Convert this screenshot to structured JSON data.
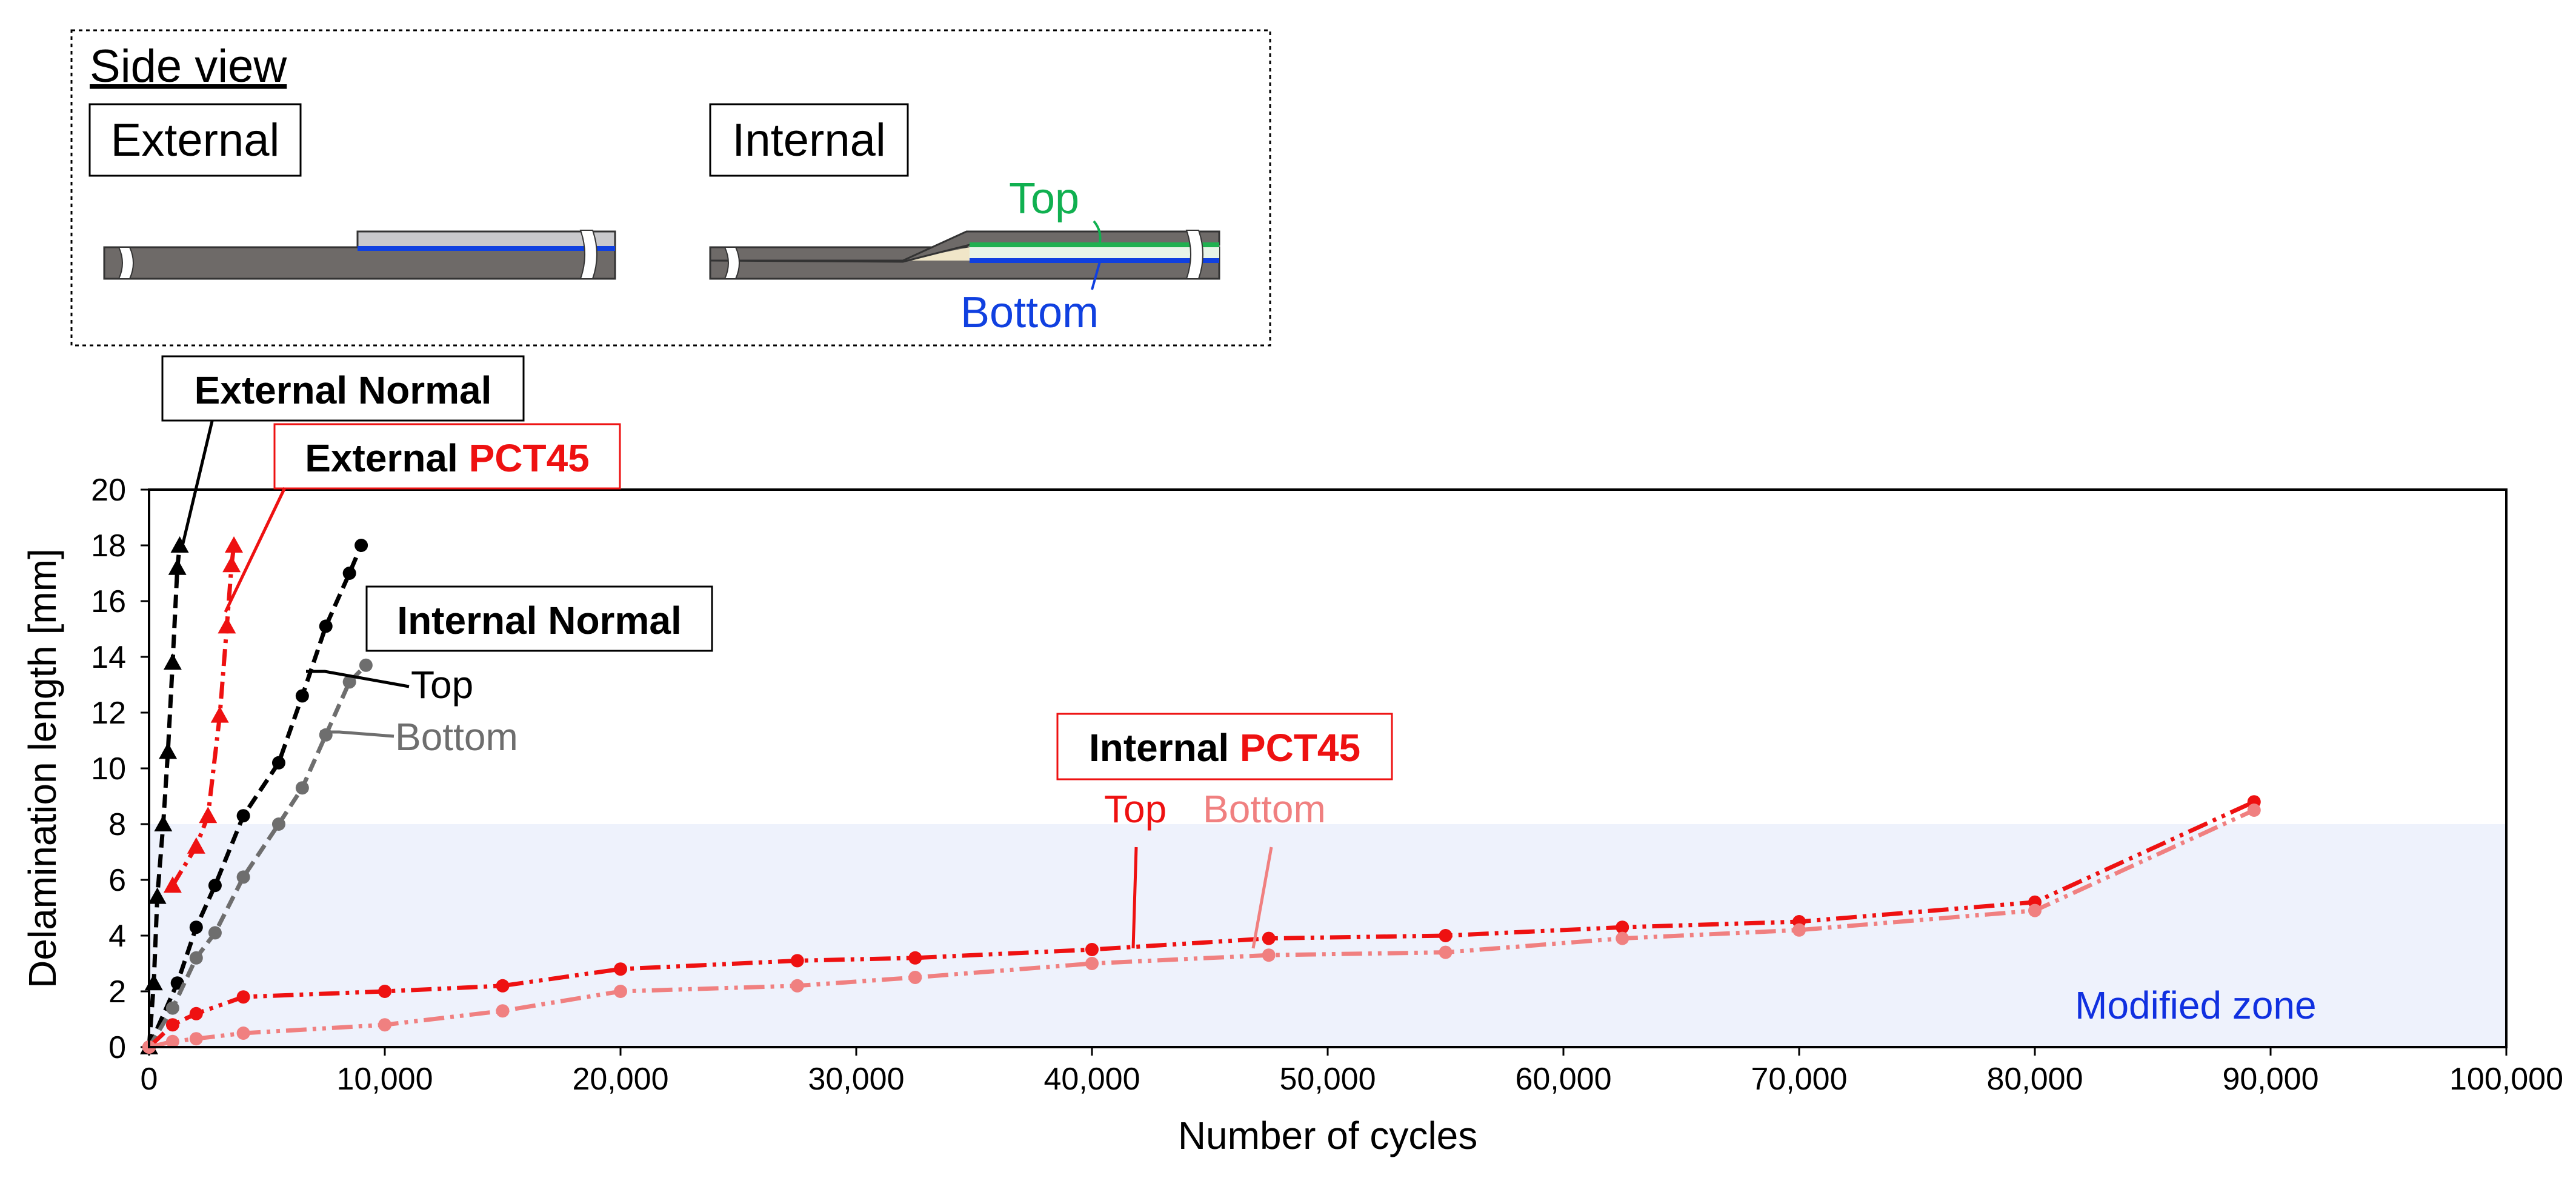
{
  "chart_data": {
    "type": "line",
    "xlabel": "Number of cycles",
    "ylabel": "Delamination length [mm]",
    "xlim": [
      0,
      100000
    ],
    "ylim": [
      0,
      20
    ],
    "x_ticks": [
      "0",
      "10,000",
      "20,000",
      "30,000",
      "40,000",
      "50,000",
      "60,000",
      "70,000",
      "80,000",
      "90,000",
      "100,000"
    ],
    "y_ticks": [
      "0",
      "2",
      "4",
      "6",
      "8",
      "10",
      "12",
      "14",
      "16",
      "18",
      "20"
    ],
    "shaded_region": {
      "label": "Modified zone",
      "y_range": [
        0,
        8
      ],
      "x_range": [
        0,
        100000
      ],
      "color": "#eef2fc",
      "label_color": "#1030e0"
    },
    "series": [
      {
        "name": "External Normal",
        "marker": "triangle",
        "color": "#000000",
        "dash": "dashed",
        "x": [
          0,
          200,
          350,
          600,
          800,
          1000,
          1200,
          1300
        ],
        "y": [
          0,
          2.3,
          5.4,
          8.0,
          10.6,
          13.8,
          17.2,
          18.0
        ]
      },
      {
        "name": "External PCT45",
        "marker": "triangle",
        "color": "#ee1111",
        "dash": "dashdot",
        "x": [
          1000,
          2000,
          2500,
          3000,
          3300,
          3500,
          3600
        ],
        "y": [
          5.8,
          7.2,
          8.3,
          11.9,
          15.1,
          17.3,
          18.0
        ]
      },
      {
        "name": "Internal Normal Top",
        "marker": "circle",
        "color": "#000000",
        "dash": "dashed",
        "x": [
          0,
          1200,
          2000,
          2800,
          4000,
          5500,
          6500,
          7500,
          8500,
          9000
        ],
        "y": [
          0,
          2.3,
          4.3,
          5.8,
          8.3,
          10.2,
          12.6,
          15.1,
          17.0,
          18.0
        ]
      },
      {
        "name": "Internal Normal Bottom",
        "marker": "circle",
        "color": "#6e6e6e",
        "dash": "dashed",
        "x": [
          0,
          1000,
          2000,
          2800,
          4000,
          5500,
          6500,
          7500,
          8500,
          9200
        ],
        "y": [
          0,
          1.4,
          3.2,
          4.1,
          6.1,
          8.0,
          9.3,
          11.2,
          13.1,
          13.7
        ]
      },
      {
        "name": "Internal PCT45 Top",
        "marker": "circle",
        "color": "#ee1111",
        "dash": "dashdotdot",
        "x": [
          0,
          1000,
          2000,
          4000,
          10000,
          15000,
          20000,
          27500,
          32500,
          40000,
          47500,
          55000,
          62500,
          70000,
          80000,
          89300
        ],
        "y": [
          0,
          0.8,
          1.2,
          1.8,
          2.0,
          2.2,
          2.8,
          3.1,
          3.2,
          3.5,
          3.9,
          4.0,
          4.3,
          4.5,
          5.2,
          8.8
        ]
      },
      {
        "name": "Internal PCT45 Bottom",
        "marker": "circle",
        "color": "#f08080",
        "dash": "dashdotdot",
        "x": [
          0,
          1000,
          2000,
          4000,
          10000,
          15000,
          20000,
          27500,
          32500,
          40000,
          47500,
          55000,
          62500,
          70000,
          80000,
          89300
        ],
        "y": [
          0,
          0.2,
          0.3,
          0.5,
          0.8,
          1.3,
          2.0,
          2.2,
          2.5,
          3.0,
          3.3,
          3.4,
          3.9,
          4.2,
          4.9,
          8.5
        ]
      }
    ],
    "annotations": {
      "external_normal": {
        "text": "External Normal"
      },
      "external_pct45": {
        "prefix": "External ",
        "highlight": "PCT45"
      },
      "internal_normal": {
        "text": "Internal Normal",
        "top": "Top",
        "bottom": "Bottom"
      },
      "internal_pct45": {
        "prefix": "Internal ",
        "highlight": "PCT45",
        "top": "Top",
        "bottom": "Bottom"
      }
    }
  },
  "inset": {
    "title": "Side view",
    "external_label": "External",
    "internal_label": "Internal",
    "top_label": "Top",
    "bottom_label": "Bottom",
    "colors": {
      "laminate": "#6e6a68",
      "patch": "#c9c9cc",
      "top_line": "#20b050",
      "bottom_line": "#1040e0",
      "filler": "#f0e6c8"
    }
  },
  "colors": {
    "red": "#ee1111",
    "pink": "#f08080",
    "gray": "#6e6e6e",
    "black": "#000000",
    "blue": "#1030e0",
    "green": "#10b050"
  }
}
